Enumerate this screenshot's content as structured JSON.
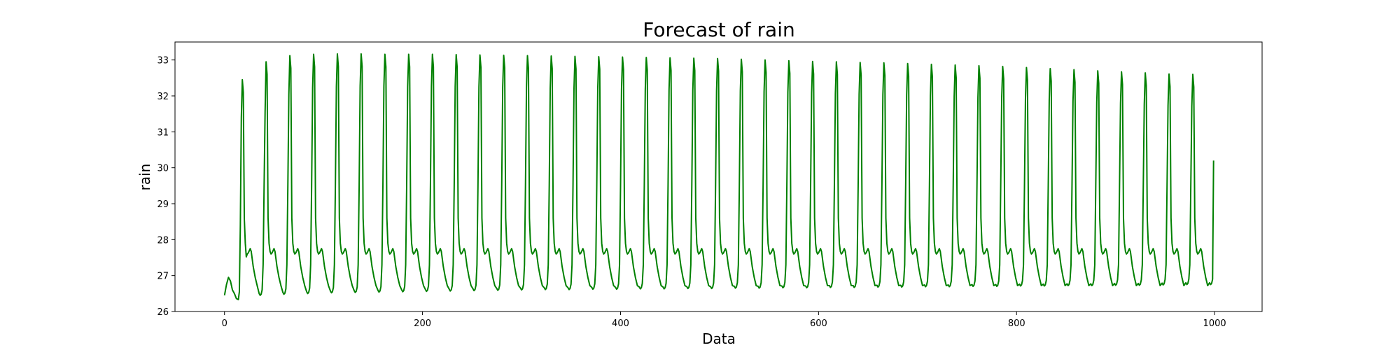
{
  "chart_data": {
    "type": "line",
    "title": "Forecast of rain",
    "xlabel": "Data",
    "ylabel": "rain",
    "xlim": [
      -50,
      1048
    ],
    "ylim": [
      26.0,
      33.5
    ],
    "xticks": [
      0,
      200,
      400,
      600,
      800,
      1000
    ],
    "yticks": [
      26,
      27,
      28,
      29,
      30,
      31,
      32,
      33
    ],
    "grid": false,
    "legend": "none",
    "series": [
      {
        "color": "#008000",
        "cycle_period": 24,
        "first_peak_x": 18,
        "peak_values": [
          32.45,
          32.95,
          33.12,
          33.16,
          33.17,
          33.17,
          33.16,
          33.16,
          33.16,
          33.15,
          33.14,
          33.13,
          33.12,
          33.11,
          33.1,
          33.09,
          33.08,
          33.07,
          33.06,
          33.05,
          33.04,
          33.02,
          33.0,
          32.98,
          32.96,
          32.95,
          32.93,
          32.92,
          32.9,
          32.88,
          32.86,
          32.84,
          32.82,
          32.79,
          32.76,
          32.73,
          32.7,
          32.67,
          32.64,
          32.61,
          32.6
        ],
        "trough_values": [
          26.33,
          26.45,
          26.48,
          26.5,
          26.52,
          26.53,
          26.54,
          26.55,
          26.56,
          26.57,
          26.58,
          26.59,
          26.6,
          26.61,
          26.61,
          26.62,
          26.62,
          26.63,
          26.63,
          26.64,
          26.64,
          26.65,
          26.65,
          26.66,
          26.66,
          26.67,
          26.67,
          26.68,
          26.68,
          26.69,
          26.69,
          26.7,
          26.7,
          26.71,
          26.71,
          26.72,
          26.72,
          26.73,
          26.73,
          26.74,
          26.75
        ],
        "shoulder_value": 27.75,
        "start": {
          "x": 0,
          "y": 26.45
        },
        "early_bump": {
          "x": 4,
          "y": 26.95
        },
        "first_trough_x": 14,
        "end": {
          "x": 999,
          "y": 30.2
        }
      }
    ]
  }
}
